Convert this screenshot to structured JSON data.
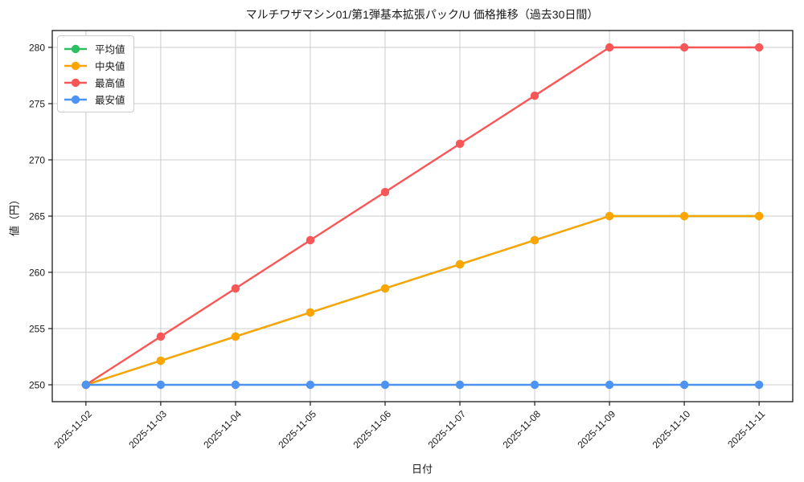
{
  "chart_data": {
    "type": "line",
    "title": "マルチワザマシン01/第1弾基本拡張パック/U 価格推移（過去30日間）",
    "xlabel": "日付",
    "ylabel": "値（円）",
    "x": [
      "2025-11-02",
      "2025-11-03",
      "2025-11-04",
      "2025-11-05",
      "2025-11-06",
      "2025-11-07",
      "2025-11-08",
      "2025-11-09",
      "2025-11-10",
      "2025-11-11"
    ],
    "series": [
      {
        "name": "平均値",
        "color": "#2dbe64",
        "values": [
          250,
          252.14,
          254.29,
          256.43,
          258.57,
          260.71,
          262.86,
          265,
          265,
          265
        ]
      },
      {
        "name": "中央値",
        "color": "#ffa502",
        "values": [
          250,
          252.14,
          254.29,
          256.43,
          258.57,
          260.71,
          262.86,
          265,
          265,
          265
        ]
      },
      {
        "name": "最高値",
        "color": "#f95757",
        "values": [
          250,
          254.29,
          258.57,
          262.86,
          267.14,
          271.43,
          275.71,
          280,
          280,
          280
        ]
      },
      {
        "name": "最安値",
        "color": "#4d94f2",
        "values": [
          250,
          250,
          250,
          250,
          250,
          250,
          250,
          250,
          250,
          250
        ]
      }
    ],
    "yticks": [
      250,
      255,
      260,
      265,
      270,
      275,
      280
    ],
    "ylim": [
      248.5,
      281.5
    ],
    "grid": true,
    "legend_position": "upper left",
    "marker": "circle",
    "colors": {
      "grid": "#cccccc",
      "spine": "#1a1a1a",
      "tick_label": "#1a1a1a",
      "background": "#ffffff"
    }
  }
}
